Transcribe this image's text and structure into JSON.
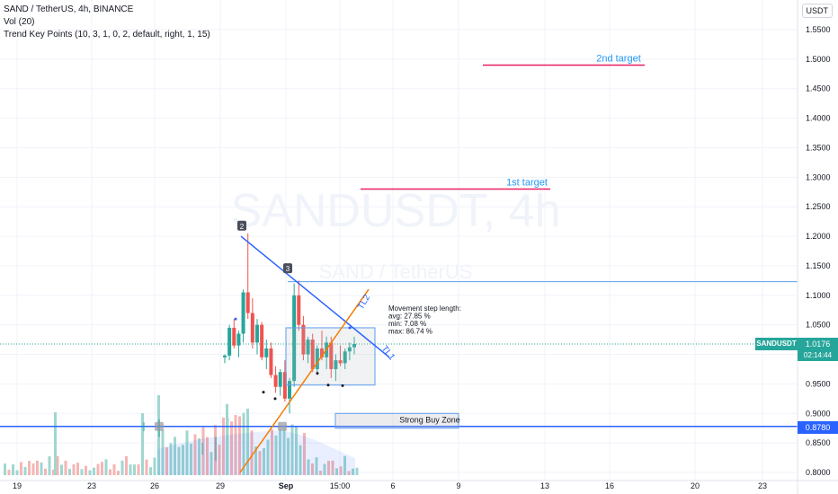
{
  "header": {
    "title": "SAND / TetherUS, 4h, BINANCE",
    "indicator_vol": "Vol (20)",
    "indicator_trend": "Trend Key Points (10, 3, 1, 0, 2, default, right, 1, 15)"
  },
  "currency": "USDT",
  "watermark": {
    "big": "SANDUSDT, 4h",
    "small": "SAND / TetherUS"
  },
  "price_scale": {
    "last_price": "1.0176",
    "symbol": "SANDUSDT",
    "countdown": "02:14:44",
    "support_price": "0.8780"
  },
  "annotations": {
    "second_target": "2nd target",
    "first_target": "1st target",
    "strong_buy_zone": "Strong Buy Zone",
    "tl1": "TL1",
    "tl2": "TL2",
    "pivot_2": "2",
    "pivot_3": "3",
    "step_title": "Movement step length:",
    "step_avg": "avg: 27.85 %",
    "step_min": "min: 7.08 %",
    "step_max": "max: 86.74 %"
  },
  "chart_data": {
    "type": "candlestick",
    "symbol": "SANDUSDT",
    "timeframe": "4h",
    "exchange": "BINANCE",
    "y_ticks": [
      "1.5500",
      "1.5000",
      "1.4500",
      "1.4000",
      "1.3500",
      "1.3000",
      "1.2500",
      "1.2000",
      "1.1500",
      "1.1000",
      "1.0500",
      "1.0000",
      "0.9500",
      "0.9000",
      "0.8500",
      "0.8000"
    ],
    "x_ticks": [
      "19",
      "23",
      "26",
      "29",
      "Sep",
      "15:00",
      "6",
      "9",
      "13",
      "16",
      "20",
      "23"
    ],
    "ylim": [
      0.8,
      1.565
    ],
    "levels": {
      "first_target": 1.28,
      "second_target": 1.49,
      "resistance": 1.123,
      "strong_buy": 0.878,
      "last_price": 1.0176
    },
    "candles": [
      [
        0.995,
        1.0,
        0.985,
        0.998
      ],
      [
        0.998,
        1.05,
        0.99,
        1.045
      ],
      [
        1.045,
        1.06,
        1.01,
        1.015
      ],
      [
        1.015,
        1.04,
        0.995,
        1.035
      ],
      [
        1.035,
        1.11,
        1.02,
        1.105
      ],
      [
        1.105,
        1.205,
        1.06,
        1.07
      ],
      [
        1.07,
        1.095,
        1.01,
        1.02
      ],
      [
        1.02,
        1.06,
        1.0,
        1.05
      ],
      [
        1.05,
        1.055,
        0.99,
        0.995
      ],
      [
        0.995,
        1.025,
        0.975,
        1.01
      ],
      [
        1.01,
        1.02,
        0.96,
        0.965
      ],
      [
        0.965,
        0.98,
        0.935,
        0.945
      ],
      [
        0.945,
        0.975,
        0.93,
        0.97
      ],
      [
        0.97,
        0.99,
        0.92,
        0.925
      ],
      [
        0.925,
        0.96,
        0.9,
        0.955
      ],
      [
        0.955,
        1.12,
        0.945,
        1.1
      ],
      [
        1.1,
        1.125,
        1.04,
        1.05
      ],
      [
        1.05,
        1.065,
        0.99,
        1.0
      ],
      [
        1.0,
        1.03,
        0.985,
        1.025
      ],
      [
        1.025,
        1.035,
        0.97,
        0.975
      ],
      [
        0.975,
        1.015,
        0.965,
        1.01
      ],
      [
        1.01,
        1.04,
        0.99,
        0.995
      ],
      [
        0.995,
        1.03,
        0.975,
        1.02
      ],
      [
        1.02,
        1.03,
        0.96,
        0.975
      ],
      [
        0.975,
        1.0,
        0.955,
        0.99
      ],
      [
        0.99,
        1.015,
        0.98,
        0.985
      ],
      [
        0.985,
        1.01,
        0.975,
        1.005
      ],
      [
        1.005,
        1.02,
        0.99,
        1.012
      ],
      [
        1.012,
        1.03,
        1.0,
        1.0176
      ]
    ]
  },
  "colors": {
    "up": "#26a69a",
    "down": "#ef5350",
    "trendline_blue": "#2962ff",
    "trendline_orange": "#f57c00",
    "target_red": "#e91e63",
    "target_text": "#2196f3"
  }
}
